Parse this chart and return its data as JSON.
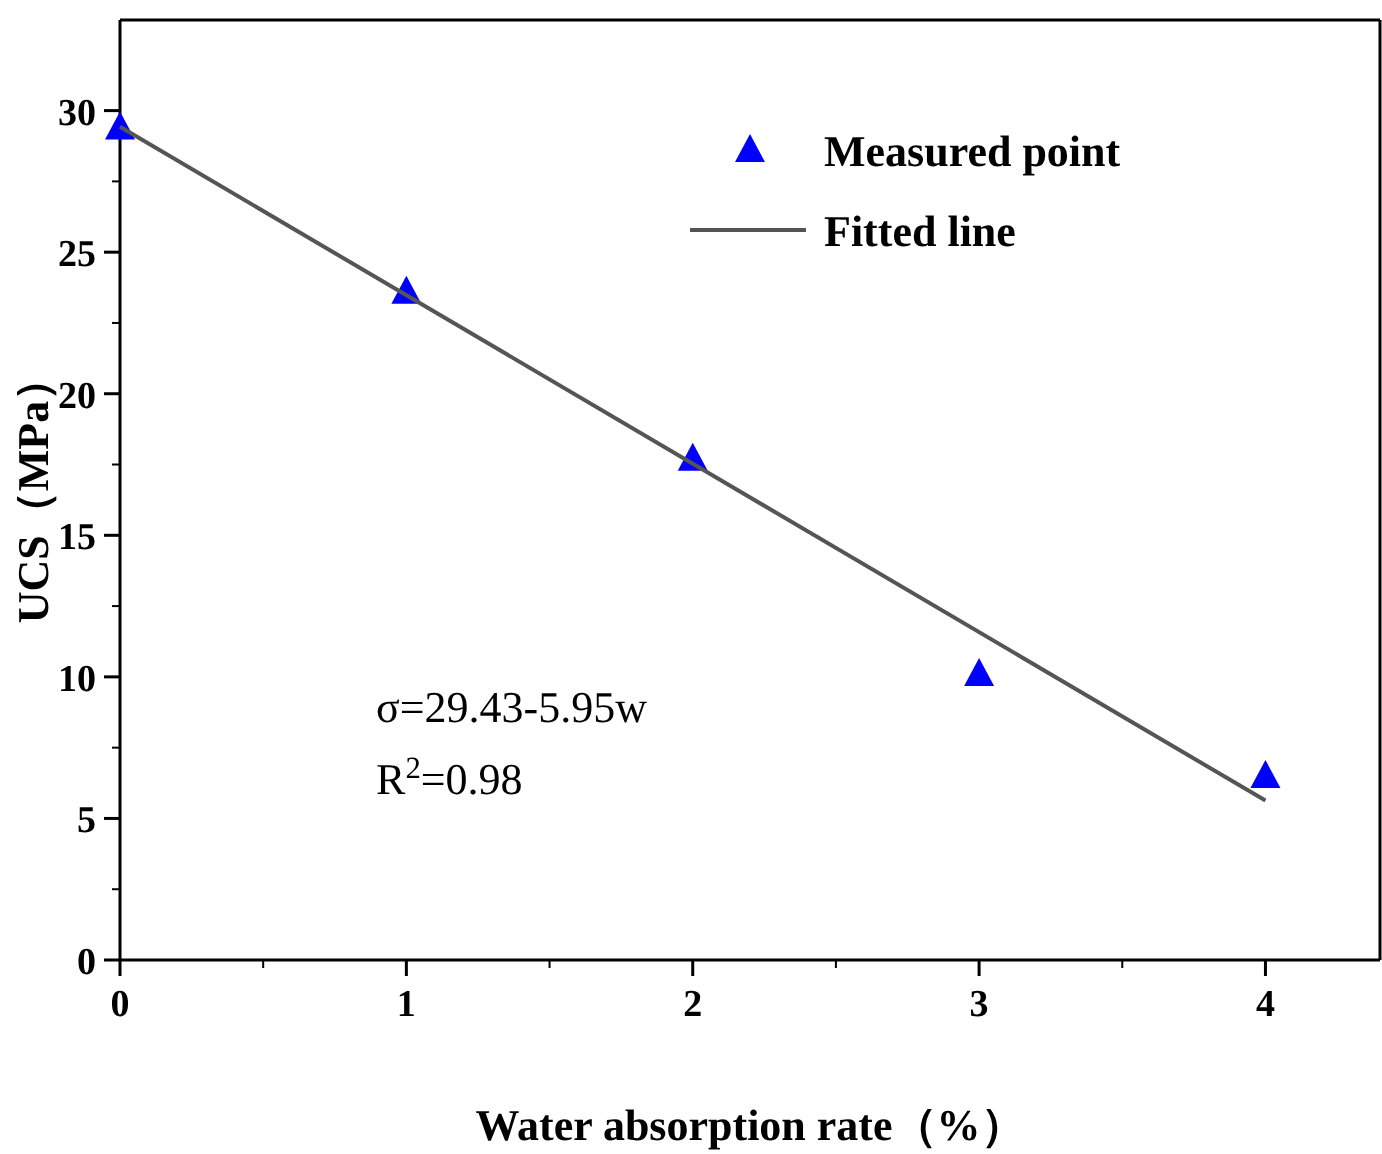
{
  "chart_data": {
    "type": "scatter",
    "xlabel": "Water absorption rate（%）",
    "ylabel": "UCS（MPa）",
    "x": [
      0,
      1,
      2,
      3,
      4
    ],
    "xlim": [
      0,
      4.4
    ],
    "ylim": [
      0,
      33.2
    ],
    "xticks": [
      0,
      1,
      2,
      3,
      4
    ],
    "yticks": [
      0,
      5,
      10,
      15,
      20,
      25,
      30
    ],
    "legend": "top right",
    "grid": false,
    "annotations": [
      "σ=29.43-5.95w",
      "R$^{2}$=0.98"
    ],
    "series": [
      {
        "name": "Measured point",
        "marker": "triangle",
        "color": "#0000ff",
        "values": [
          29.4,
          23.6,
          17.7,
          10.1,
          6.5
        ]
      },
      {
        "name": "Fitted line",
        "type": "line",
        "x": [
          0,
          4
        ],
        "color": "#555555",
        "values": [
          29.43,
          5.63
        ]
      }
    ]
  }
}
